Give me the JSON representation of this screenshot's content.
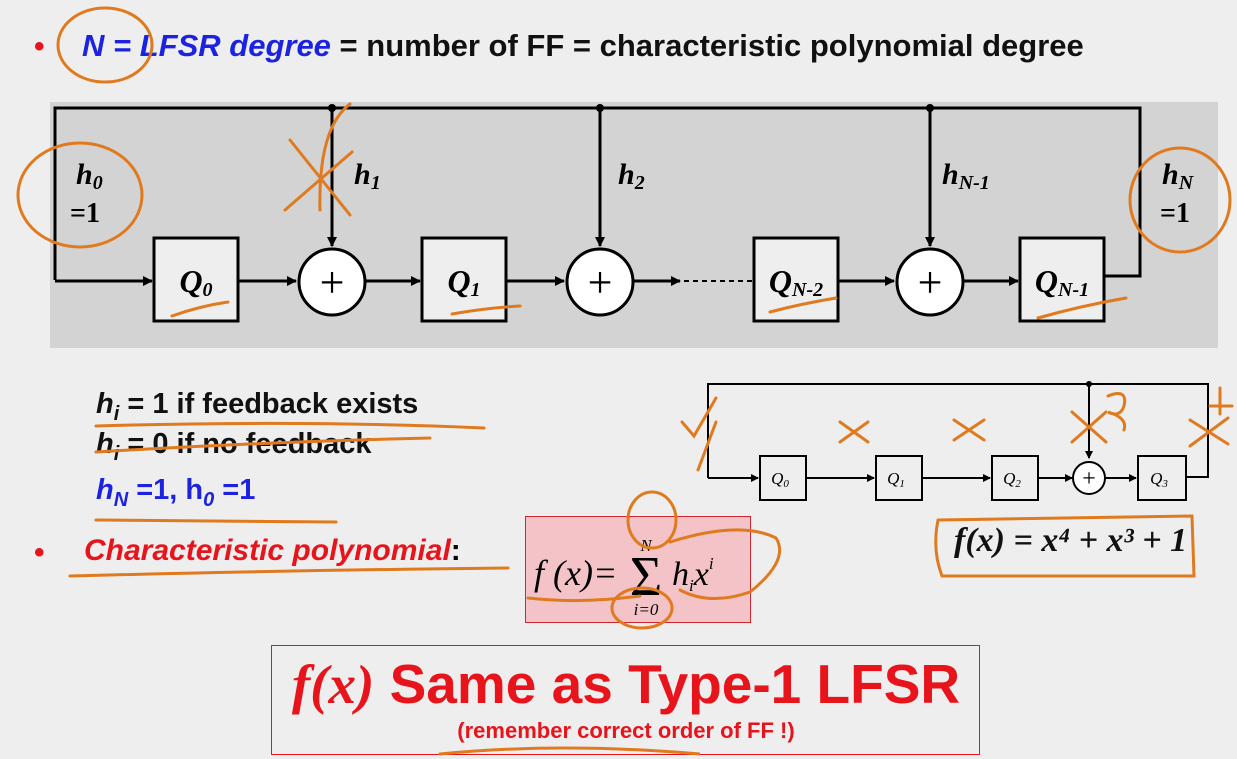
{
  "header": {
    "term": "N = LFSR degree",
    "rest": " = number of FF = characteristic polynomial degree"
  },
  "main_diagram": {
    "h0_name": "h",
    "h0_sub": "0",
    "h0_val": "=1",
    "h1_name": "h",
    "h1_sub": "1",
    "h2_name": "h",
    "h2_sub": "2",
    "hN1_name": "h",
    "hN1_sub": "N-1",
    "hN_name": "h",
    "hN_sub": "N",
    "hN_val": "=1",
    "ff": [
      {
        "name": "Q",
        "sub": "0"
      },
      {
        "name": "Q",
        "sub": "1"
      },
      {
        "name": "Q",
        "sub": "N-2"
      },
      {
        "name": "Q",
        "sub": "N-1"
      }
    ],
    "xor_symbol": "+"
  },
  "rules": {
    "r1_a": "h",
    "r1_sub": "i",
    "r1_b": " = 1 if feedback exists",
    "r2_a": "h",
    "r2_sub": "i",
    "r2_b": " = 0 if no feedback",
    "r3_a": "h",
    "r3_sub_a": "N",
    "r3_b": " =1,  h",
    "r3_sub_b": "0",
    "r3_c": " =1"
  },
  "charpoly": {
    "label": "Characteristic polynomial",
    "colon": ":",
    "formula_lhs": "f (x)=",
    "sum_top": "N",
    "sum_bottom": "i=0",
    "term_h": "h",
    "term_hsub": "i",
    "term_x": "x",
    "term_xsup": "i"
  },
  "example_diagram": {
    "ff": [
      {
        "name": "Q",
        "sub": "0"
      },
      {
        "name": "Q",
        "sub": "1"
      },
      {
        "name": "Q",
        "sub": "2"
      },
      {
        "name": "Q",
        "sub": "3"
      }
    ],
    "xor_symbol": "+",
    "formula": "f(x) = x⁴ + x³ + 1"
  },
  "conclusion": {
    "fx": "f(x)",
    "title": " Same as Type-1 LFSR",
    "note": "(remember  correct order of FF !)"
  },
  "colors": {
    "accent_red": "#e8141b",
    "accent_blue": "#1b22e0",
    "annotation_orange": "#e07a1f",
    "panel_gray": "#d3d3d3"
  }
}
